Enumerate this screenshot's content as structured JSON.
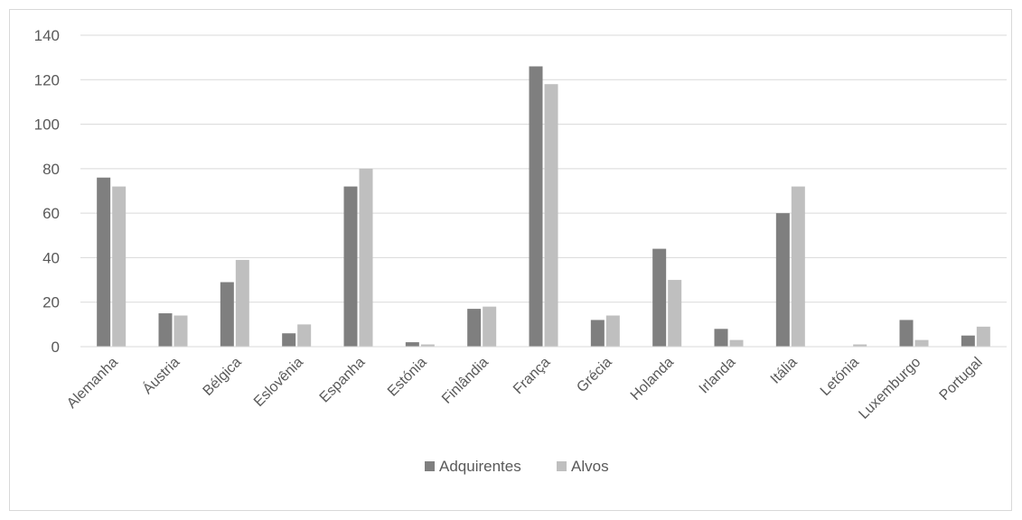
{
  "chart_data": {
    "type": "bar",
    "categories": [
      "Alemanha",
      "Áustria",
      "Bélgica",
      "Eslovênia",
      "Espanha",
      "Estónia",
      "Finlândia",
      "França",
      "Grécia",
      "Holanda",
      "Irlanda",
      "Itália",
      "Letónia",
      "Luxemburgo",
      "Portugal"
    ],
    "series": [
      {
        "name": "Adquirentes",
        "color": "#7f7f7f",
        "values": [
          76,
          15,
          29,
          6,
          72,
          2,
          17,
          126,
          12,
          44,
          8,
          60,
          0,
          12,
          5
        ]
      },
      {
        "name": "Alvos",
        "color": "#bfbfbf",
        "values": [
          72,
          14,
          39,
          10,
          80,
          1,
          18,
          118,
          14,
          30,
          3,
          72,
          1,
          3,
          9
        ]
      }
    ],
    "yticks": [
      0,
      20,
      40,
      60,
      80,
      100,
      120,
      140
    ],
    "ylim": [
      0,
      140
    ],
    "grid": true,
    "legend": "bottom",
    "title": "",
    "xlabel": "",
    "ylabel": ""
  }
}
